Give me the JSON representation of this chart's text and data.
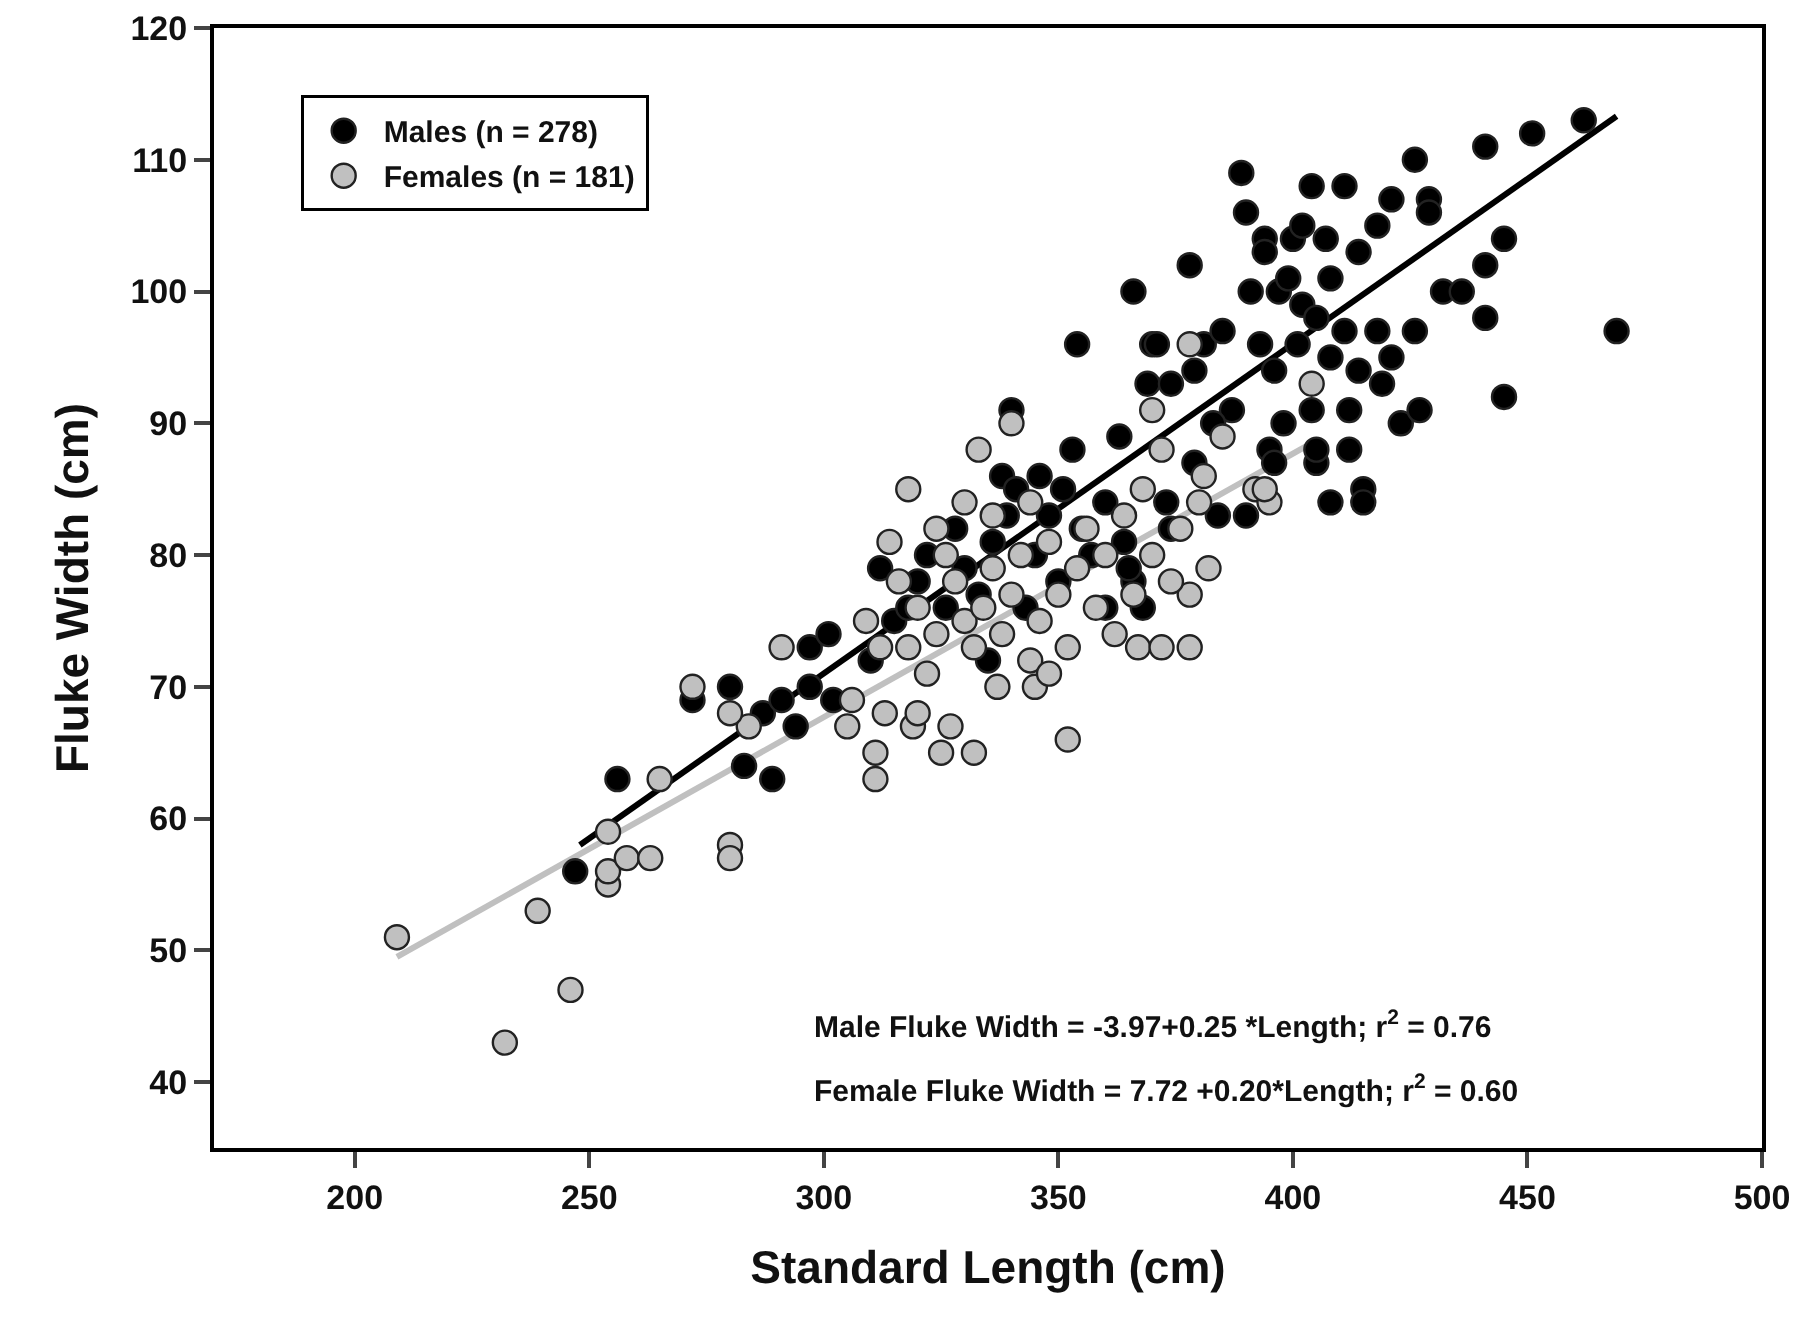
{
  "chart_data": {
    "type": "scatter",
    "xlabel": "Standard Length (cm)",
    "ylabel": "Fluke Width (cm)",
    "xlim": [
      170,
      500
    ],
    "xticks": [
      200,
      250,
      300,
      350,
      400,
      450,
      500
    ],
    "ylim": [
      35,
      120
    ],
    "yticks": [
      40,
      50,
      60,
      70,
      80,
      90,
      100,
      110,
      120
    ],
    "grid": false,
    "legend": "top left",
    "series": [
      {
        "name": "Males (n = 278)",
        "color": "#000000",
        "marker": "circle",
        "x": [
          247,
          256,
          272,
          283,
          289,
          294,
          287,
          280,
          291,
          297,
          302,
          297,
          301,
          310,
          315,
          320,
          322,
          326,
          328,
          330,
          333,
          336,
          338,
          340,
          341,
          339,
          345,
          346,
          348,
          351,
          353,
          350,
          355,
          357,
          360,
          363,
          364,
          366,
          368,
          373,
          374,
          370,
          371,
          369,
          374,
          379,
          379,
          381,
          384,
          385,
          387,
          383,
          390,
          390,
          389,
          391,
          393,
          394,
          394,
          395,
          396,
          396,
          397,
          398,
          399,
          400,
          401,
          402,
          402,
          404,
          404,
          405,
          405,
          405,
          407,
          408,
          408,
          408,
          411,
          411,
          412,
          412,
          414,
          414,
          415,
          415,
          418,
          418,
          419,
          421,
          421,
          423,
          426,
          426,
          427,
          429,
          429,
          432,
          436,
          441,
          441,
          441,
          445,
          445,
          451,
          462,
          469,
          378,
          366,
          354,
          360,
          365,
          343,
          335,
          318,
          312
        ],
        "values": [
          56,
          63,
          69,
          64,
          63,
          67,
          68,
          70,
          69,
          70,
          69,
          73,
          74,
          72,
          75,
          78,
          80,
          76,
          82,
          79,
          77,
          81,
          86,
          91,
          85,
          83,
          80,
          86,
          83,
          85,
          88,
          78,
          82,
          80,
          84,
          89,
          81,
          78,
          76,
          84,
          82,
          96,
          96,
          93,
          93,
          94,
          87,
          96,
          83,
          97,
          91,
          90,
          83,
          106,
          109,
          100,
          96,
          104,
          103,
          88,
          94,
          87,
          100,
          90,
          101,
          104,
          96,
          99,
          105,
          108,
          91,
          98,
          87,
          88,
          104,
          101,
          95,
          84,
          108,
          97,
          91,
          88,
          103,
          94,
          85,
          84,
          105,
          97,
          93,
          107,
          95,
          90,
          110,
          97,
          91,
          107,
          106,
          100,
          100,
          111,
          102,
          98,
          104,
          92,
          112,
          113,
          97,
          102,
          100,
          96,
          76,
          79,
          76,
          72,
          76,
          79
        ]
      },
      {
        "name": "Females (n = 181)",
        "color": "#c0c0c0",
        "marker": "circle",
        "x": [
          209,
          232,
          239,
          246,
          254,
          254,
          258,
          263,
          254,
          265,
          272,
          280,
          280,
          284,
          280,
          291,
          306,
          305,
          309,
          312,
          311,
          311,
          313,
          319,
          320,
          325,
          318,
          333,
          314,
          322,
          327,
          332,
          337,
          345,
          352,
          367,
          372,
          378,
          378,
          382,
          380,
          392,
          395,
          394,
          385,
          381,
          370,
          378,
          404,
          340,
          316,
          320,
          324,
          326,
          328,
          330,
          332,
          334,
          336,
          338,
          340,
          342,
          344,
          346,
          348,
          350,
          352,
          354,
          356,
          358,
          360,
          362,
          364,
          366,
          368,
          370,
          372,
          374,
          376,
          318,
          324,
          330,
          336,
          344,
          348
        ],
        "values": [
          51,
          43,
          53,
          47,
          55,
          56,
          57,
          57,
          59,
          63,
          70,
          58,
          57,
          67,
          68,
          73,
          69,
          67,
          75,
          73,
          65,
          63,
          68,
          67,
          68,
          65,
          85,
          88,
          81,
          71,
          67,
          65,
          70,
          70,
          66,
          73,
          73,
          73,
          77,
          79,
          84,
          85,
          84,
          85,
          89,
          86,
          91,
          96,
          93,
          90,
          78,
          76,
          74,
          80,
          78,
          75,
          73,
          76,
          79,
          74,
          77,
          80,
          72,
          75,
          81,
          77,
          73,
          79,
          82,
          76,
          80,
          74,
          83,
          77,
          85,
          80,
          88,
          78,
          82,
          73,
          82,
          84,
          83,
          84,
          71
        ]
      },
      {
        "type": "line",
        "color": "#000000",
        "marker": "none",
        "x": [
          248,
          469
        ],
        "values": [
          58.0,
          113.3
        ]
      },
      {
        "type": "line",
        "color": "#c0c0c0",
        "marker": "none",
        "x": [
          209,
          404
        ],
        "values": [
          49.5,
          88.5
        ]
      }
    ],
    "annotations": [
      "Male Fluke Width = -3.97+0.25 *Length; r$^{2}$ = 0.76",
      "Female Fluke Width = 7.72 +0.20*Length; r$^{2}$ = 0.60"
    ]
  }
}
